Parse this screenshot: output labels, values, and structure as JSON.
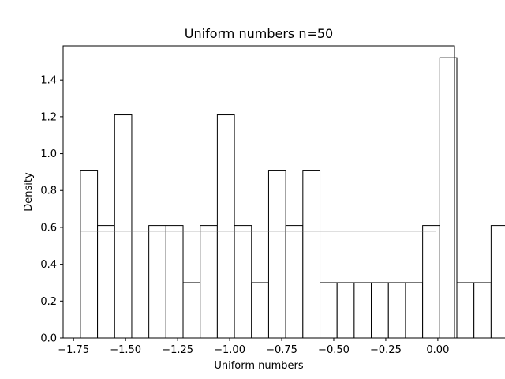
{
  "chart_data": {
    "type": "bar",
    "title": "Uniform numbers n=50",
    "xlabel": "Uniform numbers",
    "ylabel": "Density",
    "xlim": [
      -1.8,
      0.08
    ],
    "ylim": [
      0,
      1.585
    ],
    "xticks": [
      -1.75,
      -1.5,
      -1.25,
      -1.0,
      -0.75,
      -0.5,
      -0.25,
      0.0
    ],
    "xtick_labels": [
      "−1.75",
      "−1.50",
      "−1.25",
      "−1.00",
      "−0.75",
      "−0.50",
      "−0.25",
      "0.00"
    ],
    "yticks": [
      0.0,
      0.2,
      0.4,
      0.6,
      0.8,
      1.0,
      1.2,
      1.4
    ],
    "ytick_labels": [
      "0.0",
      "0.2",
      "0.4",
      "0.6",
      "0.8",
      "1.0",
      "1.2",
      "1.4"
    ],
    "bin_start": -1.717,
    "bin_width": 0.0822,
    "values": [
      0.91,
      0.61,
      1.21,
      0.0,
      0.61,
      0.61,
      0.3,
      0.61,
      1.21,
      0.61,
      0.3,
      0.91,
      0.61,
      0.91,
      0.3,
      0.3,
      0.3,
      0.3,
      0.3,
      0.3,
      0.61,
      1.52,
      0.3,
      0.3,
      0.61,
      0.61
    ],
    "reference_line": {
      "y": 0.58,
      "x_start": -1.717,
      "x_end": -0.0076,
      "color": "#808080"
    },
    "bar_fill": "#ffffff",
    "bar_edge": "#000000",
    "grid": false
  }
}
